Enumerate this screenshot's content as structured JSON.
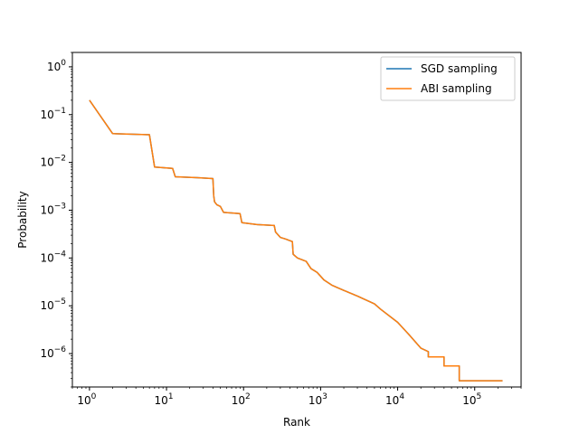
{
  "chart_data": {
    "type": "line",
    "xlabel": "Rank",
    "ylabel": "Probability",
    "xscale": "log",
    "yscale": "log",
    "xlim": [
      0.6,
      400000
    ],
    "ylim": [
      2e-07,
      2
    ],
    "grid": false,
    "legend_position": "top-right",
    "x_ticks": [
      {
        "value": 1,
        "base": "10",
        "exp": "0"
      },
      {
        "value": 10,
        "base": "10",
        "exp": "1"
      },
      {
        "value": 100,
        "base": "10",
        "exp": "2"
      },
      {
        "value": 1000,
        "base": "10",
        "exp": "3"
      },
      {
        "value": 10000,
        "base": "10",
        "exp": "4"
      },
      {
        "value": 100000,
        "base": "10",
        "exp": "5"
      }
    ],
    "y_ticks": [
      {
        "value": 1,
        "base": "10",
        "exp": "0"
      },
      {
        "value": 0.1,
        "base": "10",
        "exp": "−1"
      },
      {
        "value": 0.01,
        "base": "10",
        "exp": "−2"
      },
      {
        "value": 0.001,
        "base": "10",
        "exp": "−3"
      },
      {
        "value": 0.0001,
        "base": "10",
        "exp": "−4"
      },
      {
        "value": 1e-05,
        "base": "10",
        "exp": "−5"
      },
      {
        "value": 1e-06,
        "base": "10",
        "exp": "−6"
      }
    ],
    "series": [
      {
        "name": "SGD sampling",
        "color": "#1f77b4",
        "points": [
          [
            1,
            0.2
          ],
          [
            2,
            0.04
          ],
          [
            6,
            0.038
          ],
          [
            7,
            0.008
          ],
          [
            12,
            0.0075
          ],
          [
            13,
            0.005
          ],
          [
            25,
            0.0048
          ],
          [
            40,
            0.0046
          ],
          [
            41,
            0.002
          ],
          [
            42,
            0.0015
          ],
          [
            45,
            0.0013
          ],
          [
            50,
            0.0012
          ],
          [
            55,
            0.0009
          ],
          [
            90,
            0.00085
          ],
          [
            95,
            0.00055
          ],
          [
            150,
            0.0005
          ],
          [
            250,
            0.00048
          ],
          [
            260,
            0.00035
          ],
          [
            300,
            0.00027
          ],
          [
            350,
            0.00025
          ],
          [
            400,
            0.00023
          ],
          [
            430,
            0.00022
          ],
          [
            440,
            0.00012
          ],
          [
            500,
            0.0001
          ],
          [
            650,
            8.5e-05
          ],
          [
            750,
            6e-05
          ],
          [
            900,
            5e-05
          ],
          [
            1100,
            3.5e-05
          ],
          [
            1400,
            2.7e-05
          ],
          [
            2000,
            2.1e-05
          ],
          [
            3000,
            1.6e-05
          ],
          [
            5000,
            1.1e-05
          ],
          [
            6000,
            8.5e-06
          ],
          [
            10000,
            4.5e-06
          ],
          [
            14000,
            2.5e-06
          ],
          [
            20000,
            1.3e-06
          ],
          [
            25000,
            1.1e-06
          ],
          [
            25000,
            8.5e-07
          ],
          [
            40000,
            8.5e-07
          ],
          [
            40000,
            5.5e-07
          ],
          [
            63000,
            5.5e-07
          ],
          [
            63000,
            2.7e-07
          ],
          [
            230000,
            2.7e-07
          ]
        ]
      },
      {
        "name": "ABI sampling",
        "color": "#ff7f0e",
        "points": [
          [
            1,
            0.2
          ],
          [
            2,
            0.04
          ],
          [
            6,
            0.038
          ],
          [
            7,
            0.008
          ],
          [
            12,
            0.0075
          ],
          [
            13,
            0.005
          ],
          [
            25,
            0.0048
          ],
          [
            40,
            0.0046
          ],
          [
            41,
            0.002
          ],
          [
            42,
            0.0015
          ],
          [
            45,
            0.0013
          ],
          [
            50,
            0.0012
          ],
          [
            55,
            0.0009
          ],
          [
            90,
            0.00085
          ],
          [
            95,
            0.00055
          ],
          [
            150,
            0.0005
          ],
          [
            250,
            0.00048
          ],
          [
            260,
            0.00035
          ],
          [
            300,
            0.00027
          ],
          [
            350,
            0.00025
          ],
          [
            400,
            0.00023
          ],
          [
            430,
            0.00022
          ],
          [
            440,
            0.00012
          ],
          [
            500,
            0.0001
          ],
          [
            650,
            8.5e-05
          ],
          [
            750,
            6e-05
          ],
          [
            900,
            5e-05
          ],
          [
            1100,
            3.5e-05
          ],
          [
            1400,
            2.7e-05
          ],
          [
            2000,
            2.1e-05
          ],
          [
            3000,
            1.6e-05
          ],
          [
            5000,
            1.1e-05
          ],
          [
            6000,
            8.5e-06
          ],
          [
            10000,
            4.5e-06
          ],
          [
            14000,
            2.5e-06
          ],
          [
            20000,
            1.3e-06
          ],
          [
            25000,
            1.1e-06
          ],
          [
            25000,
            8.5e-07
          ],
          [
            40000,
            8.5e-07
          ],
          [
            40000,
            5.5e-07
          ],
          [
            63000,
            5.5e-07
          ],
          [
            63000,
            2.7e-07
          ],
          [
            230000,
            2.7e-07
          ]
        ]
      }
    ]
  }
}
